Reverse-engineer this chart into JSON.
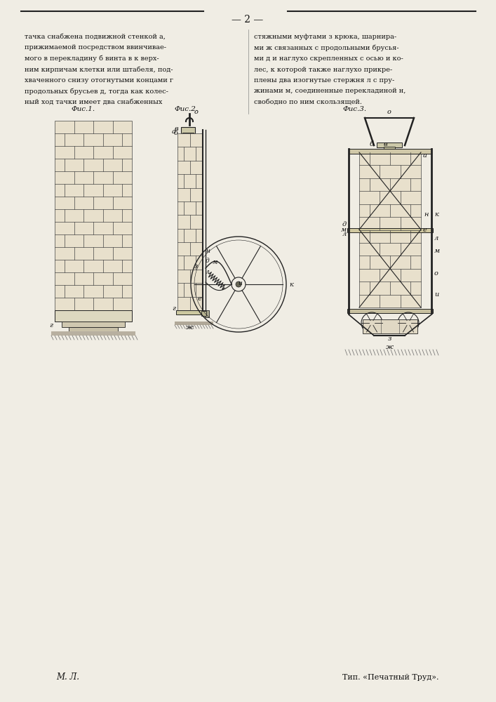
{
  "page_width": 7.07,
  "page_height": 10.0,
  "bg_color": "#f0ede4",
  "page_number": "— 2 —",
  "left_column_text": [
    "тачка снабжена подвижной стенкой а,",
    "прижимаемой посредством ввинчивае-",
    "мого в перекладину б винта в к верх-",
    "ним кирпичам клетки или штабеля, под-",
    "хваченного снизу отогнутыми концами г",
    "продольных брусьев д, тогда как колес-",
    "ный ход тачки имеет два снабженных"
  ],
  "right_column_text": [
    "стяжными муфтами з крюка, шарнира-",
    "ми ж связанных с продольными брусья-",
    "ми д и наглухо скрепленных с осью и ко-",
    "лес, к которой также наглухо прикре-",
    "плены два изогнутые стержня л с пру-",
    "жинами м, соединенные перекладиной н,",
    "свободно по ним скользящей."
  ],
  "bottom_left": "М. Л.",
  "bottom_right": "Тип. «Печатный Труд».",
  "fig1_label": "Фис.1.",
  "fig2_label": "Фис.2.",
  "fig3_label": "Фис.3.",
  "text_color": "#111111",
  "line_color": "#222222"
}
